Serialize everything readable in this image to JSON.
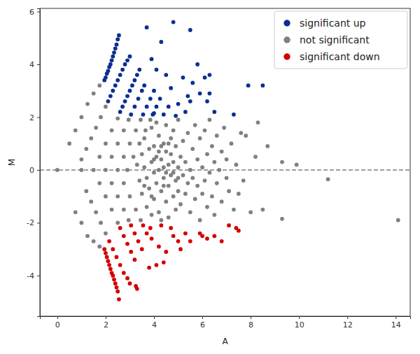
{
  "chart_data": {
    "type": "scatter",
    "x_label": "A",
    "y_label": "M",
    "xlim": [
      -0.72,
      14.6
    ],
    "ylim": [
      -5.54,
      6.12
    ],
    "xticks": [
      0,
      2,
      4,
      6,
      8,
      10,
      12,
      14
    ],
    "yticks": [
      -4,
      -2,
      0,
      2,
      4,
      6
    ],
    "hline": 0,
    "legend": "upper right",
    "marker": "circle",
    "series": [
      {
        "name": "significant up",
        "color": "#0b2f91",
        "x": [
          1.95,
          2.0,
          2.05,
          2.1,
          2.15,
          2.2,
          2.25,
          2.3,
          2.35,
          2.4,
          2.45,
          2.5,
          2.55,
          2.1,
          2.2,
          2.3,
          2.4,
          2.5,
          2.6,
          2.7,
          2.8,
          2.9,
          3.0,
          2.6,
          2.7,
          2.8,
          2.9,
          3.0,
          3.1,
          3.2,
          3.3,
          3.4,
          3.05,
          3.2,
          3.35,
          3.5,
          3.6,
          3.55,
          3.7,
          3.85,
          4.0,
          3.95,
          4.1,
          4.25,
          3.7,
          4.8,
          5.5,
          4.3,
          3.9,
          4.1,
          4.5,
          5.2,
          5.6,
          6.1,
          6.3,
          5.9,
          6.2,
          7.9,
          8.5,
          7.3,
          5.4,
          4.6,
          5.0,
          5.5,
          6.3,
          6.5,
          5.3,
          4.9,
          4.4,
          4.7,
          5.8,
          4.0
        ],
        "values": [
          3.4,
          3.5,
          3.65,
          3.75,
          3.9,
          4.0,
          4.15,
          4.3,
          4.45,
          4.6,
          4.75,
          4.95,
          5.1,
          2.6,
          2.8,
          3.0,
          3.2,
          3.4,
          3.6,
          3.8,
          4.0,
          4.15,
          4.3,
          2.2,
          2.4,
          2.6,
          2.8,
          3.0,
          3.2,
          3.4,
          3.6,
          3.8,
          2.1,
          2.4,
          2.7,
          3.0,
          3.2,
          2.1,
          2.4,
          2.7,
          3.0,
          2.1,
          2.4,
          2.7,
          5.4,
          5.6,
          5.3,
          4.85,
          4.2,
          3.8,
          3.6,
          3.5,
          3.3,
          3.5,
          3.6,
          2.9,
          2.6,
          3.2,
          3.2,
          2.1,
          2.8,
          2.4,
          2.5,
          2.6,
          2.9,
          2.2,
          2.2,
          2.05,
          2.1,
          3.1,
          4.0,
          2.15
        ]
      },
      {
        "name": "not significant",
        "color": "#808080",
        "x": [
          0.5,
          0.75,
          1.0,
          1.25,
          1.5,
          1.75,
          1.0,
          1.2,
          1.4,
          1.6,
          1.8,
          2.0,
          1.5,
          1.75,
          2.0,
          2.25,
          2.5,
          2.0,
          2.25,
          2.5,
          2.75,
          2.95,
          2.5,
          2.75,
          3.0,
          3.25,
          3.45,
          2.9,
          3.15,
          3.4,
          3.65,
          3.85,
          0.75,
          1.0,
          1.25,
          1.5,
          1.75,
          1.2,
          1.4,
          1.6,
          1.8,
          2.0,
          1.75,
          2.0,
          2.25,
          2.5,
          2.25,
          2.5,
          2.75,
          2.95,
          2.75,
          3.0,
          3.25,
          3.45,
          0,
          1.0,
          3.3,
          3.4,
          3.5,
          3.5,
          3.6,
          3.6,
          3.7,
          3.7,
          3.8,
          3.8,
          3.9,
          3.9,
          3.9,
          4.0,
          4.0,
          4.0,
          4.1,
          4.1,
          4.1,
          4.2,
          4.2,
          4.2,
          4.3,
          4.3,
          4.3,
          4.4,
          4.4,
          4.4,
          4.5,
          4.5,
          4.5,
          4.6,
          4.6,
          4.6,
          4.7,
          4.7,
          4.7,
          4.8,
          4.8,
          4.8,
          4.9,
          4.9,
          4.9,
          5.0,
          5.0,
          5.0,
          5.1,
          5.1,
          5.2,
          5.2,
          5.3,
          5.3,
          5.4,
          5.4,
          5.5,
          5.5,
          5.6,
          5.6,
          5.7,
          5.7,
          5.8,
          5.8,
          5.9,
          5.9,
          6.0,
          6.0,
          6.1,
          6.1,
          6.2,
          6.2,
          6.3,
          6.3,
          6.4,
          6.4,
          6.5,
          6.5,
          6.6,
          6.6,
          6.7,
          6.8,
          6.8,
          6.9,
          7.0,
          7.0,
          7.1,
          7.2,
          7.3,
          7.4,
          7.5,
          7.6,
          7.7,
          7.8,
          8.0,
          8.2,
          8.3,
          8.5,
          8.7,
          9.3,
          9.3,
          9.9,
          11.2,
          14.1,
          3.6,
          4.0,
          4.2,
          4.4,
          4.6,
          4.3,
          3.9,
          4.5,
          5.0,
          4.8
        ],
        "values": [
          1.0,
          1.5,
          2.0,
          2.5,
          2.9,
          3.2,
          0.4,
          0.8,
          1.2,
          1.6,
          2.0,
          2.4,
          0.0,
          0.5,
          1.0,
          1.5,
          1.95,
          0.0,
          0.5,
          1.0,
          1.5,
          1.9,
          0.0,
          0.5,
          1.0,
          1.5,
          1.9,
          0.0,
          0.5,
          1.0,
          1.5,
          1.9,
          -1.6,
          -2.0,
          -2.5,
          -2.7,
          -2.9,
          -0.8,
          -1.2,
          -1.6,
          -2.0,
          -2.4,
          -0.5,
          -1.0,
          -1.5,
          -2.0,
          -0.5,
          -1.0,
          -1.5,
          -1.9,
          -0.5,
          -1.0,
          -1.5,
          -1.9,
          0,
          0.0,
          0.2,
          -0.4,
          0.6,
          -0.9,
          0.1,
          1.2,
          -0.3,
          -1.4,
          0.8,
          -0.7,
          0.3,
          1.6,
          -1.7,
          -0.1,
          0.9,
          -1.1,
          0.5,
          -0.5,
          1.8,
          0.0,
          -1.6,
          1.3,
          0.4,
          -0.8,
          -1.9,
          1.0,
          -0.3,
          0.1,
          -1.2,
          0.7,
          1.7,
          -0.6,
          0.2,
          -1.8,
          1.2,
          -0.2,
          0.6,
          -1.0,
          0.3,
          1.5,
          -0.4,
          0.9,
          -1.5,
          0.1,
          1.9,
          -0.8,
          0.5,
          -1.3,
          1.1,
          -0.2,
          0.3,
          -0.9,
          1.4,
          -0.5,
          0.0,
          -1.6,
          0.8,
          -0.3,
          1.7,
          -1.1,
          0.4,
          -0.6,
          1.2,
          -1.9,
          0.1,
          -0.9,
          1.5,
          -0.4,
          0.6,
          -1.4,
          1.9,
          -0.1,
          0.9,
          -1.0,
          0.3,
          -1.7,
          1.3,
          -0.5,
          0.0,
          0.7,
          -1.2,
          1.6,
          -0.3,
          0.4,
          -0.8,
          1.0,
          -1.5,
          0.2,
          -0.9,
          1.4,
          -0.4,
          1.3,
          -1.6,
          0.5,
          1.8,
          -1.5,
          0.9,
          0.3,
          -1.85,
          0.2,
          -0.35,
          -1.9,
          -0.6,
          0.4,
          0.7,
          -0.6,
          1.0,
          0.9,
          -1.0,
          -0.1,
          -0.3,
          -0.1
        ]
      },
      {
        "name": "significant down",
        "color": "#d40000",
        "x": [
          1.95,
          2.0,
          2.05,
          2.1,
          2.15,
          2.2,
          2.25,
          2.3,
          2.35,
          2.4,
          2.45,
          2.5,
          2.55,
          2.15,
          2.3,
          2.45,
          2.6,
          2.75,
          2.9,
          3.0,
          2.6,
          2.75,
          2.9,
          3.05,
          3.2,
          3.25,
          3.3,
          3.05,
          3.2,
          3.35,
          3.5,
          3.55,
          3.7,
          3.85,
          3.8,
          4.1,
          4.4,
          4.5,
          4.2,
          3.9,
          5.0,
          5.1,
          5.3,
          5.5,
          6.0,
          6.2,
          6.5,
          6.8,
          7.1,
          7.4,
          7.5,
          5.9,
          4.7,
          4.8,
          4.3
        ],
        "values": [
          -3.0,
          -3.15,
          -3.3,
          -3.45,
          -3.6,
          -3.75,
          -3.9,
          -4.0,
          -4.15,
          -4.3,
          -4.45,
          -4.6,
          -4.9,
          -2.7,
          -3.0,
          -3.3,
          -3.6,
          -3.9,
          -4.1,
          -4.3,
          -2.2,
          -2.5,
          -2.8,
          -3.1,
          -3.4,
          -4.4,
          -4.5,
          -2.1,
          -2.4,
          -2.7,
          -3.0,
          -2.1,
          -2.4,
          -2.2,
          -3.7,
          -3.6,
          -3.5,
          -3.1,
          -2.9,
          -2.6,
          -2.7,
          -3.0,
          -2.4,
          -2.7,
          -2.5,
          -2.6,
          -2.5,
          -2.7,
          -2.1,
          -2.2,
          -2.3,
          -2.4,
          -2.2,
          -2.5,
          -2.1
        ]
      }
    ]
  }
}
